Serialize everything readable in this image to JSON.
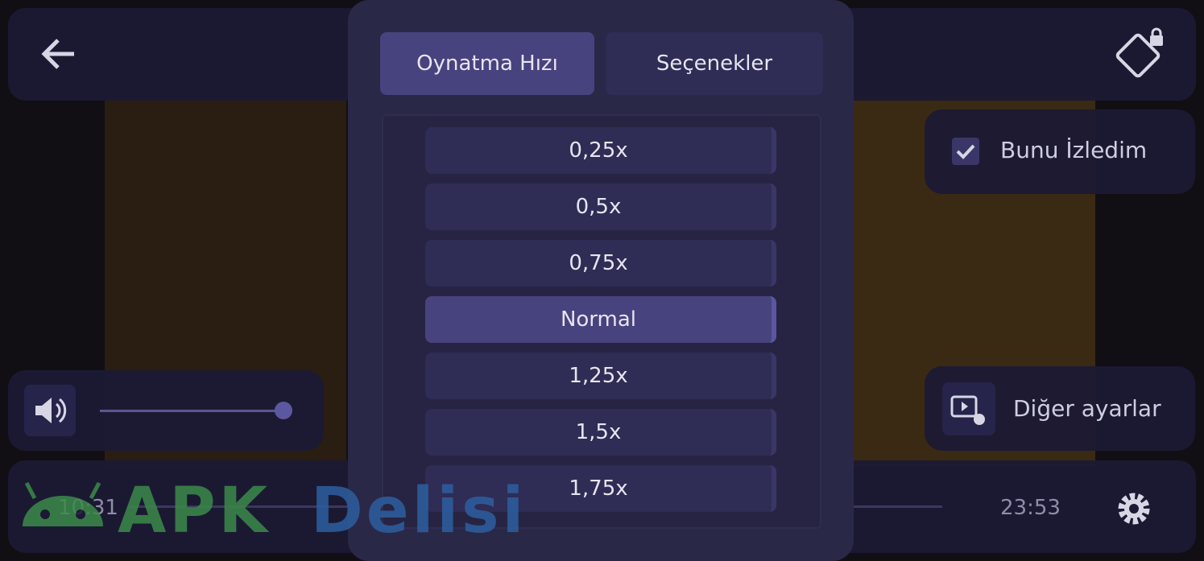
{
  "tabs": {
    "active": "Oynatma Hızı",
    "other": "Seçenekler"
  },
  "speeds": [
    "0,25x",
    "0,5x",
    "0,75x",
    "Normal",
    "1,25x",
    "1,5x",
    "1,75x"
  ],
  "selected_speed": "Normal",
  "watched": "Bunu İzledim",
  "more_settings": "Diğer ayarlar",
  "time": {
    "current": "10:31",
    "total": "23:53"
  },
  "watermark": {
    "brand": "APK",
    "name": "Delisi"
  }
}
